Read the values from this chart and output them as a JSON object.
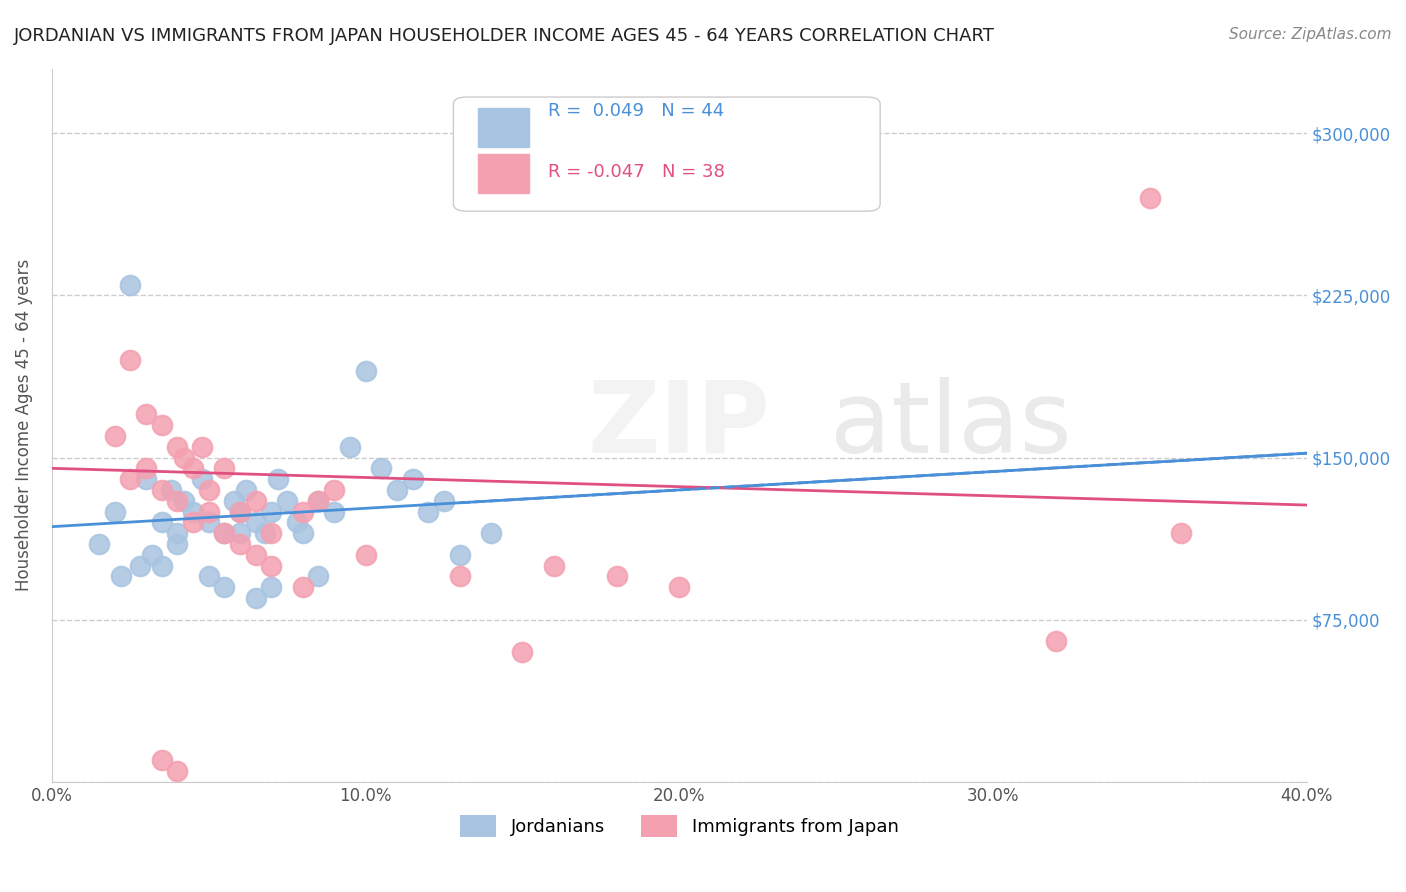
{
  "title": "JORDANIAN VS IMMIGRANTS FROM JAPAN HOUSEHOLDER INCOME AGES 45 - 64 YEARS CORRELATION CHART",
  "source": "Source: ZipAtlas.com",
  "ylabel": "Householder Income Ages 45 - 64 years",
  "xlabel": "",
  "xlim": [
    0.0,
    0.4
  ],
  "ylim": [
    0,
    330000
  ],
  "yticks": [
    0,
    75000,
    150000,
    225000,
    300000
  ],
  "ytick_labels": [
    "",
    "$75,000",
    "$150,000",
    "$225,000",
    "$300,000"
  ],
  "xtick_labels": [
    "0.0%",
    "10.0%",
    "20.0%",
    "30.0%",
    "40.0%"
  ],
  "xticks": [
    0.0,
    0.1,
    0.2,
    0.3,
    0.4
  ],
  "blue_color": "#a8c4e0",
  "pink_color": "#f4a0b0",
  "blue_line_color": "#4a90d9",
  "pink_line_color": "#e05080",
  "r_blue": 0.049,
  "n_blue": 44,
  "r_pink": -0.047,
  "n_pink": 38,
  "legend_label_blue": "Jordanians",
  "legend_label_pink": "Immigrants from Japan",
  "watermark": "ZIPatlas",
  "blue_scatter_x": [
    0.02,
    0.025,
    0.03,
    0.035,
    0.038,
    0.04,
    0.042,
    0.045,
    0.048,
    0.05,
    0.055,
    0.058,
    0.06,
    0.062,
    0.065,
    0.068,
    0.07,
    0.072,
    0.075,
    0.078,
    0.08,
    0.085,
    0.09,
    0.095,
    0.1,
    0.105,
    0.11,
    0.115,
    0.12,
    0.125,
    0.13,
    0.14,
    0.015,
    0.022,
    0.028,
    0.032,
    0.05,
    0.055,
    0.065,
    0.07,
    0.04,
    0.035,
    0.06,
    0.085
  ],
  "blue_scatter_y": [
    125000,
    230000,
    140000,
    120000,
    135000,
    115000,
    130000,
    125000,
    140000,
    120000,
    115000,
    130000,
    125000,
    135000,
    120000,
    115000,
    125000,
    140000,
    130000,
    120000,
    115000,
    130000,
    125000,
    155000,
    190000,
    145000,
    135000,
    140000,
    125000,
    130000,
    105000,
    115000,
    110000,
    95000,
    100000,
    105000,
    95000,
    90000,
    85000,
    90000,
    110000,
    100000,
    115000,
    95000
  ],
  "pink_scatter_x": [
    0.02,
    0.025,
    0.03,
    0.035,
    0.04,
    0.042,
    0.045,
    0.048,
    0.05,
    0.055,
    0.06,
    0.065,
    0.07,
    0.08,
    0.085,
    0.09,
    0.1,
    0.13,
    0.15,
    0.16,
    0.18,
    0.2,
    0.025,
    0.03,
    0.035,
    0.04,
    0.045,
    0.05,
    0.055,
    0.06,
    0.065,
    0.07,
    0.08,
    0.035,
    0.04,
    0.32,
    0.35,
    0.36
  ],
  "pink_scatter_y": [
    160000,
    195000,
    170000,
    165000,
    155000,
    150000,
    145000,
    155000,
    135000,
    145000,
    125000,
    130000,
    115000,
    125000,
    130000,
    135000,
    105000,
    95000,
    60000,
    100000,
    95000,
    90000,
    140000,
    145000,
    135000,
    130000,
    120000,
    125000,
    115000,
    110000,
    105000,
    100000,
    90000,
    10000,
    5000,
    65000,
    270000,
    115000
  ]
}
